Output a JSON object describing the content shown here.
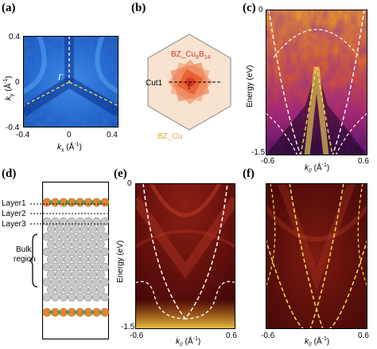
{
  "panels": {
    "a": {
      "label": "(a)",
      "xlabel": "k",
      "xlabel_sub": "x",
      "xlabel_unit": "(Å",
      "xlabel_exp": "-1",
      "xlabel_close": ")",
      "ylabel": "k",
      "ylabel_sub": "y",
      "ylabel_unit": "(Å",
      "ylabel_exp": "-1",
      "ylabel_close": ")",
      "xticks": [
        "-0.4",
        "0",
        "0.4"
      ],
      "yticks": [
        "0.4",
        "0",
        "-0.4"
      ],
      "gamma": "Γ",
      "colors": {
        "bg": "#1f6fd8",
        "dark": "#0a2f8a",
        "dash": "#ffffff",
        "dash2": "#f4e04d"
      }
    },
    "b": {
      "label": "(b)",
      "inner_bz": "BZ_Cu",
      "inner_sub": "8",
      "inner_mid": "B",
      "inner_sub2": "14",
      "cut": "Cut1",
      "outer_bz": "BZ_Cu",
      "gamma": "Γ",
      "colors": {
        "hex": "#f7e3cf",
        "star": "#ef7a45",
        "inner_text": "#d9362a",
        "outer_text": "#e9a13a"
      }
    },
    "c": {
      "label": "(c)",
      "ylabel": "Energy (eV)",
      "yticks": [
        "0",
        "-1.5"
      ],
      "xticks": [
        "-0.6",
        "0.6"
      ],
      "xlabel": "k",
      "xlabel_sub": "//",
      "xlabel_unit": "(Å",
      "xlabel_exp": "-1",
      "xlabel_close": ")"
    },
    "d": {
      "label": "(d)",
      "layers": [
        "Layer1",
        "Layer2",
        "Layer3"
      ],
      "bulk_label": [
        "Bulk",
        "region"
      ],
      "colors": {
        "atom_top": "#e8852a",
        "atom_bulk": "#c8c8c8",
        "green": "#3fa64a"
      }
    },
    "e": {
      "label": "(e)",
      "ylabel": "Energy (eV)",
      "yticks": [
        "0",
        "-1.5"
      ],
      "xticks": [
        "-0.6",
        "0.6"
      ],
      "xlabel": "k",
      "xlabel_sub": "//",
      "xlabel_unit": "(Å",
      "xlabel_exp": "-1",
      "xlabel_close": ")"
    },
    "f": {
      "label": "(f)",
      "xticks": [
        "-0.6",
        "0.6"
      ],
      "xlabel": "k",
      "xlabel_sub": "//",
      "xlabel_unit": "(Å",
      "xlabel_exp": "-1",
      "xlabel_close": ")"
    }
  }
}
